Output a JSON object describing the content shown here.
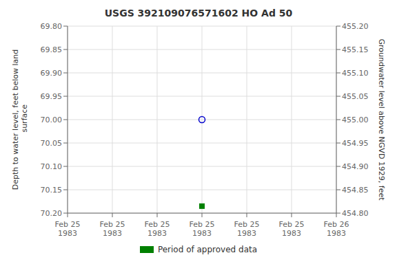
{
  "chart_data": {
    "type": "scatter",
    "title": "USGS 392109076571602 HO Ad  50",
    "y_label": "Depth to water level, feet below land\n surface",
    "y2_label": "Groundwater level above NGVD 1929, feet",
    "categories": [
      "Feb 25\n1983",
      "Feb 25\n1983",
      "Feb 25\n1983",
      "Feb 25\n1983",
      "Feb 25\n1983",
      "Feb 25\n1983",
      "Feb 26\n1983"
    ],
    "series": [
      {
        "color": "#0000cc",
        "marker": "open_circle",
        "values": [
          null,
          null,
          null,
          70.0,
          null,
          null,
          null
        ]
      },
      {
        "name": "Period of approved data",
        "color": "#008000",
        "marker": "square",
        "values": [
          null,
          null,
          null,
          70.185,
          null,
          null,
          null
        ]
      }
    ],
    "ylim": [
      70.2,
      69.8
    ],
    "yticks": [
      {
        "value": 69.8,
        "label": "69.80"
      },
      69.85,
      {
        "value": 69.9,
        "label": "69.90"
      },
      69.95,
      {
        "value": 70.0,
        "label": "70.00"
      },
      70.05,
      {
        "value": 70.1,
        "label": "70.10"
      },
      70.15,
      {
        "value": 70.2,
        "label": "70.20"
      }
    ],
    "y2lim": [
      454.8,
      455.2
    ],
    "y2ticks": [
      {
        "value": 455.2,
        "label": "455.20"
      },
      455.15,
      {
        "value": 455.1,
        "label": "455.10"
      },
      455.05,
      {
        "value": 455.0,
        "label": "455.00"
      },
      454.95,
      {
        "value": 454.9,
        "label": "454.90"
      },
      454.85,
      {
        "value": 454.8,
        "label": "454.80"
      }
    ],
    "grid": true,
    "legend": "bottom"
  }
}
